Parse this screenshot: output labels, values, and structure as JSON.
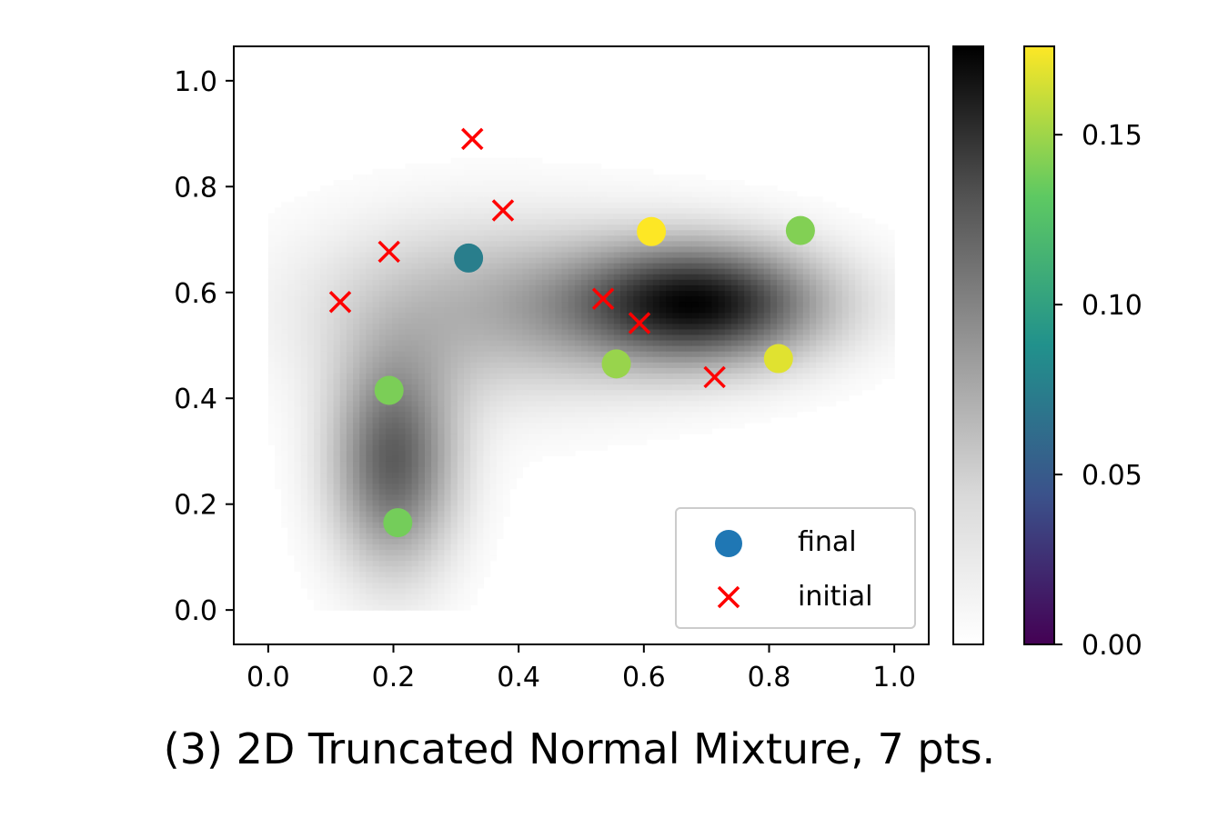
{
  "chart_data": {
    "type": "scatter",
    "title": "",
    "caption": "(3) 2D Truncated Normal Mixture, 7 pts.",
    "xlabel": "",
    "ylabel": "",
    "xlim": [
      -0.055,
      1.055
    ],
    "ylim": [
      -0.065,
      1.065
    ],
    "x_ticks": [
      "0.0",
      "0.2",
      "0.4",
      "0.6",
      "0.8",
      "1.0"
    ],
    "y_ticks": [
      "0.0",
      "0.2",
      "0.4",
      "0.6",
      "0.8",
      "1.0"
    ],
    "grid": false,
    "background": {
      "kind": "density heatmap (truncated normal mixture over [0,1]x[0,1])",
      "colormap": "Greys",
      "components": [
        {
          "mean": [
            0.69,
            0.58
          ],
          "sigma": [
            0.14,
            0.08
          ],
          "weight": 1.0
        },
        {
          "mean": [
            0.36,
            0.57
          ],
          "sigma": [
            0.2,
            0.12
          ],
          "weight": 0.35
        },
        {
          "mean": [
            0.2,
            0.28
          ],
          "sigma": [
            0.07,
            0.14
          ],
          "weight": 0.72
        }
      ]
    },
    "series": [
      {
        "name": "final",
        "marker": "circle",
        "legend_color": "#1f77b4",
        "colormap": "viridis",
        "points": [
          {
            "x": 0.32,
            "y": 0.665,
            "c": 0.075
          },
          {
            "x": 0.612,
            "y": 0.715,
            "c": 0.176
          },
          {
            "x": 0.85,
            "y": 0.717,
            "c": 0.142
          },
          {
            "x": 0.556,
            "y": 0.465,
            "c": 0.148
          },
          {
            "x": 0.815,
            "y": 0.475,
            "c": 0.168
          },
          {
            "x": 0.193,
            "y": 0.415,
            "c": 0.14
          },
          {
            "x": 0.207,
            "y": 0.165,
            "c": 0.138
          }
        ]
      },
      {
        "name": "initial",
        "marker": "x",
        "color": "#ff0000",
        "points": [
          {
            "x": 0.326,
            "y": 0.89
          },
          {
            "x": 0.375,
            "y": 0.755
          },
          {
            "x": 0.193,
            "y": 0.677
          },
          {
            "x": 0.115,
            "y": 0.582
          },
          {
            "x": 0.535,
            "y": 0.588
          },
          {
            "x": 0.593,
            "y": 0.542
          },
          {
            "x": 0.713,
            "y": 0.44
          }
        ]
      }
    ],
    "legend": {
      "placement": "lower right",
      "entries": [
        "final",
        "initial"
      ]
    },
    "colorbars": [
      {
        "colormap": "Greys",
        "ticks": []
      },
      {
        "colormap": "viridis",
        "range": [
          0.0,
          0.176
        ],
        "ticks": [
          "0.00",
          "0.05",
          "0.10",
          "0.15"
        ],
        "tick_values": [
          0.0,
          0.05,
          0.1,
          0.15
        ]
      }
    ]
  }
}
